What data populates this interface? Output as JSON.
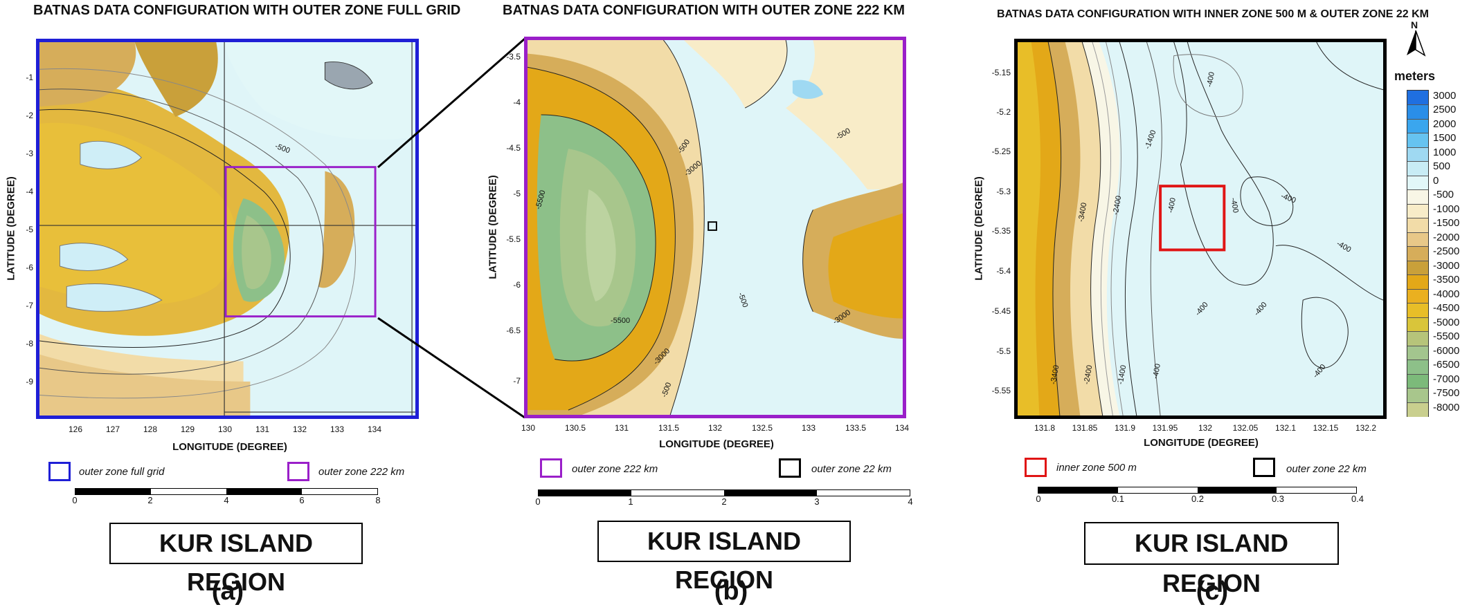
{
  "panels": [
    {
      "title": "BATNAS DATA CONFIGURATION WITH OUTER ZONE FULL GRID",
      "xlabel": "LONGITUDE (DEGREE)",
      "ylabel": "LATITUDE (DEGREE)",
      "yticks": [
        "-1",
        "-2",
        "-3",
        "-4",
        "-5",
        "-6",
        "-7",
        "-8",
        "-9"
      ],
      "xticks": [
        "126",
        "127",
        "128",
        "129",
        "130",
        "131",
        "132",
        "133",
        "134"
      ],
      "contours": [
        "-500",
        "-500"
      ],
      "legend": [
        {
          "label": "outer zone full grid",
          "color": "#1f1fd6"
        },
        {
          "label": "outer zone 222 km",
          "color": "#9a1fc9"
        }
      ],
      "scale_ticks": [
        "0",
        "2",
        "4",
        "6",
        "8"
      ],
      "region": "KUR ISLAND REGION",
      "letter": "(a)"
    },
    {
      "title": "BATNAS DATA CONFIGURATION WITH OUTER ZONE 222 KM",
      "xlabel": "LONGITUDE (DEGREE)",
      "ylabel": "LATITUDE (DEGREE)",
      "yticks": [
        "-3.5",
        "-4",
        "-4.5",
        "-5",
        "-5.5",
        "-6",
        "-6.5",
        "-7"
      ],
      "xticks": [
        "130",
        "130.5",
        "131",
        "131.5",
        "132",
        "132.5",
        "133",
        "133.5",
        "134"
      ],
      "contours": [
        "-500",
        "-3000",
        "-5500",
        "-5500",
        "-3000",
        "-500",
        "-500",
        "-500",
        "-3000",
        "-500"
      ],
      "legend": [
        {
          "label": "outer zone 222 km",
          "color": "#9a1fc9"
        },
        {
          "label": "outer zone 22 km",
          "color": "#000000"
        }
      ],
      "scale_ticks": [
        "0",
        "1",
        "2",
        "3",
        "4"
      ],
      "region": "KUR ISLAND REGION",
      "letter": "(b)"
    },
    {
      "title": "BATNAS DATA CONFIGURATION WITH INNER ZONE 500 M & OUTER ZONE 22 KM",
      "xlabel": "LONGITUDE (DEGREE)",
      "ylabel": "LATITUDE (DEGREE)",
      "yticks": [
        "-5.15",
        "-5.2",
        "-5.25",
        "-5.3",
        "-5.35",
        "-5.4",
        "-5.45",
        "-5.5",
        "-5.55"
      ],
      "xticks": [
        "131.8",
        "131.85",
        "131.9",
        "131.95",
        "132",
        "132.05",
        "132.1",
        "132.15",
        "132.2"
      ],
      "contours": [
        "-3400",
        "-2400",
        "-1400",
        "-400",
        "-400",
        "-400",
        "-400",
        "-400",
        "-400",
        "-3400",
        "-2400",
        "-1400",
        "-400",
        "-400",
        "-400"
      ],
      "legend": [
        {
          "label": "inner zone 500 m",
          "color": "#e01515"
        },
        {
          "label": "outer zone 22 km",
          "color": "#000000"
        }
      ],
      "scale_ticks": [
        "0",
        "0.1",
        "0.2",
        "0.3",
        "0.4"
      ],
      "region": "KUR ISLAND REGION",
      "letter": "(c)"
    }
  ],
  "north_arrow": "N",
  "colorbar": {
    "unit": "meters",
    "levels": [
      "3000",
      "2500",
      "2000",
      "1500",
      "1000",
      "500",
      "0",
      "-500",
      "-1000",
      "-1500",
      "-2000",
      "-2500",
      "-3000",
      "-3500",
      "-4000",
      "-4500",
      "-5000",
      "-5500",
      "-6000",
      "-6500",
      "-7000",
      "-7500",
      "-8000"
    ],
    "colors": [
      "#1f6fe0",
      "#2a8ee8",
      "#3aa6ee",
      "#66c3f0",
      "#9fd9f2",
      "#c8ecf5",
      "#e2f7f8",
      "#f8f6e6",
      "#f8ecc8",
      "#f2dca8",
      "#e8c888",
      "#d6ad5a",
      "#c9a03a",
      "#e3a818",
      "#eab020",
      "#e8be28",
      "#d9c53a",
      "#b6c47a",
      "#a3c58e",
      "#8dc089",
      "#7cba7a",
      "#a8c68c",
      "#c9cf8e"
    ]
  }
}
